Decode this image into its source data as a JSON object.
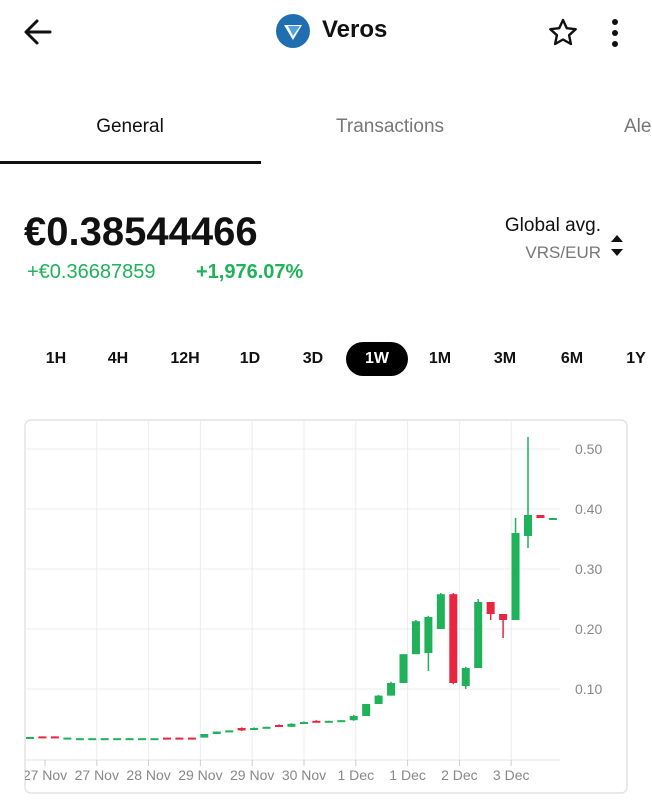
{
  "header": {
    "title": "Veros"
  },
  "tabs": [
    "General",
    "Transactions",
    "Ale"
  ],
  "price": {
    "value": "€0.38544466",
    "change": "+€0.36687859",
    "change_percent": "+1,976.07%",
    "source": "Global avg.",
    "pair": "VRS/EUR"
  },
  "ranges": [
    "1H",
    "4H",
    "12H",
    "1D",
    "3D",
    "1W",
    "1M",
    "3M",
    "6M",
    "1Y"
  ],
  "chart_data": {
    "type": "candlestick",
    "up_color": "#1fb25a",
    "down_color": "#e8263f",
    "open": [
      0.02,
      0.021,
      0.021,
      0.019,
      0.018,
      0.018,
      0.018,
      0.018,
      0.018,
      0.018,
      0.018,
      0.019,
      0.019,
      0.019,
      0.019,
      0.025,
      0.029,
      0.035,
      0.032,
      0.035,
      0.04,
      0.037,
      0.042,
      0.047,
      0.046,
      0.047,
      0.048,
      0.055,
      0.075,
      0.089,
      0.11,
      0.158,
      0.16,
      0.2,
      0.258,
      0.105,
      0.135,
      0.245,
      0.225,
      0.215,
      0.355,
      0.39,
      0.385
    ],
    "high": [
      0.02,
      0.021,
      0.021,
      0.019,
      0.018,
      0.018,
      0.018,
      0.018,
      0.018,
      0.018,
      0.018,
      0.019,
      0.019,
      0.019,
      0.025,
      0.029,
      0.031,
      0.036,
      0.036,
      0.037,
      0.041,
      0.043,
      0.046,
      0.048,
      0.047,
      0.048,
      0.057,
      0.075,
      0.09,
      0.112,
      0.158,
      0.215,
      0.222,
      0.26,
      0.26,
      0.137,
      0.25,
      0.245,
      0.225,
      0.385,
      0.52,
      0.39,
      0.385
    ],
    "low": [
      0.02,
      0.02,
      0.02,
      0.019,
      0.018,
      0.018,
      0.018,
      0.018,
      0.018,
      0.018,
      0.018,
      0.018,
      0.018,
      0.018,
      0.019,
      0.025,
      0.029,
      0.03,
      0.032,
      0.035,
      0.037,
      0.037,
      0.042,
      0.045,
      0.046,
      0.047,
      0.047,
      0.055,
      0.075,
      0.089,
      0.11,
      0.158,
      0.13,
      0.2,
      0.108,
      0.1,
      0.135,
      0.215,
      0.185,
      0.215,
      0.335,
      0.385,
      0.385
    ],
    "close": [
      0.02,
      0.02,
      0.02,
      0.019,
      0.018,
      0.018,
      0.018,
      0.018,
      0.018,
      0.018,
      0.018,
      0.018,
      0.018,
      0.018,
      0.025,
      0.029,
      0.031,
      0.031,
      0.035,
      0.037,
      0.038,
      0.042,
      0.045,
      0.046,
      0.047,
      0.048,
      0.055,
      0.075,
      0.089,
      0.11,
      0.158,
      0.213,
      0.22,
      0.258,
      0.11,
      0.135,
      0.245,
      0.225,
      0.215,
      0.36,
      0.39,
      0.385,
      0.385
    ],
    "xticks": [
      "27 Nov",
      "27 Nov",
      "28 Nov",
      "29 Nov",
      "29 Nov",
      "30 Nov",
      "1 Dec",
      "1 Dec",
      "2 Dec",
      "3 Dec"
    ],
    "ylim": [
      0,
      0.55
    ],
    "yticks": [
      {
        "value": 0.1,
        "label": "0.10"
      },
      {
        "value": 0.2,
        "label": "0.20"
      },
      {
        "value": 0.3,
        "label": "0.30"
      },
      {
        "value": 0.4,
        "label": "0.40"
      },
      {
        "value": 0.5,
        "label": "0.50"
      }
    ],
    "grid": true
  }
}
